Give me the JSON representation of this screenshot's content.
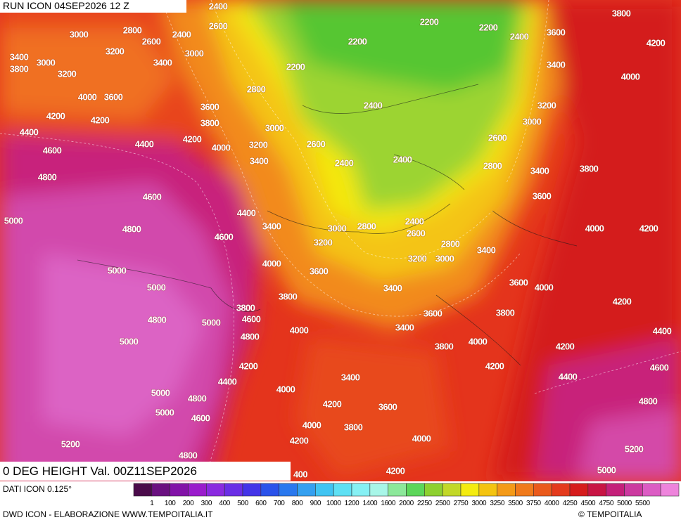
{
  "header": {
    "run": "RUN ICON 04SEP2026 12 Z"
  },
  "map": {
    "contour_labels": [
      "2400",
      "2600",
      "2800",
      "2400",
      "3000",
      "2600",
      "3200",
      "3000",
      "2200",
      "2200",
      "2400",
      "2200",
      "3800",
      "3600",
      "4200",
      "3400",
      "3000",
      "3800",
      "3200",
      "3400",
      "2200",
      "3400",
      "4000",
      "4000",
      "3600",
      "2800",
      "2400",
      "3600",
      "3200",
      "4200",
      "4200",
      "3800",
      "3000",
      "3000",
      "4400",
      "4200",
      "4000",
      "3200",
      "2600",
      "2600",
      "4600",
      "4400",
      "3400",
      "2400",
      "2400",
      "2800",
      "3400",
      "3800",
      "4800",
      "3600",
      "4600",
      "4400",
      "3400",
      "5000",
      "4800",
      "3000",
      "2800",
      "2400",
      "4000",
      "4200",
      "4600",
      "2600",
      "3200",
      "2800",
      "3400",
      "4000",
      "3200",
      "3000",
      "3600",
      "5000",
      "5000",
      "3400",
      "3600",
      "4000",
      "3800",
      "3800",
      "4200",
      "4600",
      "3600",
      "3800",
      "4800",
      "5000",
      "3400",
      "4000",
      "4400",
      "4800",
      "5000",
      "3800",
      "4000",
      "4200",
      "4200",
      "4200",
      "4600",
      "3400",
      "4400",
      "4400",
      "4000",
      "5000",
      "4800",
      "4200",
      "3600",
      "4800",
      "5000",
      "4600",
      "4000",
      "3800",
      "4200",
      "4000",
      "5200",
      "5200",
      "4800",
      "4200",
      "5000",
      "400"
    ]
  },
  "footer": {
    "field": "0 DEG HEIGHT Val. 00Z11SEP2026",
    "source": "DATI ICON 0.125°",
    "credit": "DWD ICON - ELABORAZIONE WWW.TEMPOITALIA.IT",
    "copyright": "© TEMPOITALIA"
  },
  "colorbar": {
    "labels": [
      "1",
      "100",
      "200",
      "300",
      "400",
      "500",
      "600",
      "700",
      "800",
      "900",
      "1000",
      "1200",
      "1400",
      "1600",
      "2000",
      "2250",
      "2500",
      "2750",
      "3000",
      "3250",
      "3500",
      "3750",
      "4000",
      "4250",
      "4500",
      "4750",
      "5000",
      "5500"
    ],
    "colors": [
      "#4a0a4a",
      "#6a1080",
      "#8212a8",
      "#9a1ccc",
      "#8a2ae0",
      "#6a2ee6",
      "#4434e8",
      "#2a52ea",
      "#2a78ee",
      "#34a0f0",
      "#40c4f2",
      "#5ee0f4",
      "#86f0f4",
      "#a8f6e8",
      "#8ce89a",
      "#5cd65a",
      "#8ed030",
      "#c2d828",
      "#f4ec10",
      "#f4c410",
      "#f49a18",
      "#f07a1c",
      "#ea5a1c",
      "#e43a1c",
      "#d61c1c",
      "#c81444",
      "#c4207a",
      "#cc3aa0",
      "#dc5cc4",
      "#ee84dc"
    ]
  }
}
